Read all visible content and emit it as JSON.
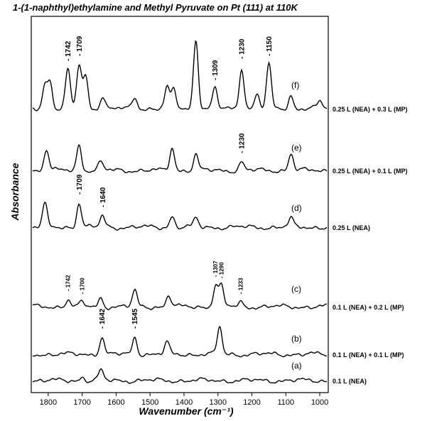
{
  "chart_data": {
    "type": "line",
    "title": "1-(1-naphthyl)ethylamine and Methyl Pyruvate on Pt (111) at 110K",
    "xlabel": "Wavenumber (cm⁻¹)",
    "ylabel": "Absorbance",
    "x_reversed": true,
    "xlim": [
      1850,
      975
    ],
    "xticks": [
      1800,
      1700,
      1600,
      1500,
      1400,
      1300,
      1200,
      1100,
      1000
    ],
    "grid": false,
    "legend": "none",
    "series": [
      {
        "letter": "(f)",
        "name": "0.25 L (NEA) + 0.3 L (MP)",
        "peaks": [
          {
            "x": 1810,
            "h": 32
          },
          {
            "x": 1795,
            "h": 38
          },
          {
            "x": 1742,
            "h": 55,
            "label": "1742"
          },
          {
            "x": 1709,
            "h": 62,
            "label": "1709"
          },
          {
            "x": 1690,
            "h": 45
          },
          {
            "x": 1640,
            "h": 18
          },
          {
            "x": 1545,
            "h": 16
          },
          {
            "x": 1450,
            "h": 30
          },
          {
            "x": 1430,
            "h": 26
          },
          {
            "x": 1365,
            "h": 98
          },
          {
            "x": 1309,
            "h": 28,
            "label": "1309"
          },
          {
            "x": 1230,
            "h": 58,
            "label": "1230"
          },
          {
            "x": 1185,
            "h": 20
          },
          {
            "x": 1150,
            "h": 62,
            "label": "1150"
          },
          {
            "x": 1085,
            "h": 18
          },
          {
            "x": 1000,
            "h": 10
          }
        ]
      },
      {
        "letter": "(e)",
        "name": "0.25 L (NEA) + 0.1 L (MP)",
        "peaks": [
          {
            "x": 1805,
            "h": 30
          },
          {
            "x": 1709,
            "h": 36
          },
          {
            "x": 1645,
            "h": 12
          },
          {
            "x": 1435,
            "h": 32
          },
          {
            "x": 1365,
            "h": 22
          },
          {
            "x": 1230,
            "h": 12,
            "label": "1230"
          },
          {
            "x": 1085,
            "h": 24
          }
        ]
      },
      {
        "letter": "(d)",
        "name": "0.25 L (NEA)",
        "peaks": [
          {
            "x": 1810,
            "h": 32
          },
          {
            "x": 1709,
            "h": 34,
            "label": "1709"
          },
          {
            "x": 1640,
            "h": 16,
            "label": "1640"
          },
          {
            "x": 1435,
            "h": 16
          },
          {
            "x": 1365,
            "h": 12
          },
          {
            "x": 1085,
            "h": 12
          }
        ]
      },
      {
        "letter": "(c)",
        "name": "0.1 L (NEA) + 0.2 L (MP)",
        "peaks": [
          {
            "x": 1742,
            "h": 10,
            "label": "1742"
          },
          {
            "x": 1700,
            "h": 6,
            "label": "1700"
          },
          {
            "x": 1645,
            "h": 12
          },
          {
            "x": 1545,
            "h": 22
          },
          {
            "x": 1445,
            "h": 16
          },
          {
            "x": 1307,
            "h": 30,
            "label": "1307"
          },
          {
            "x": 1290,
            "h": 28,
            "label": "1290"
          },
          {
            "x": 1233,
            "h": 6,
            "label": "1233"
          }
        ]
      },
      {
        "letter": "(b)",
        "name": "0.1 L (NEA) + 0.1 L (MP)",
        "peaks": [
          {
            "x": 1642,
            "h": 24,
            "label": "1642"
          },
          {
            "x": 1545,
            "h": 24,
            "label": "1545"
          },
          {
            "x": 1450,
            "h": 16
          },
          {
            "x": 1295,
            "h": 38
          }
        ]
      },
      {
        "letter": "(a)",
        "name": "0.1 L (NEA)",
        "peaks": [
          {
            "x": 1645,
            "h": 14
          },
          {
            "x": 1700,
            "h": 5
          }
        ]
      }
    ]
  }
}
